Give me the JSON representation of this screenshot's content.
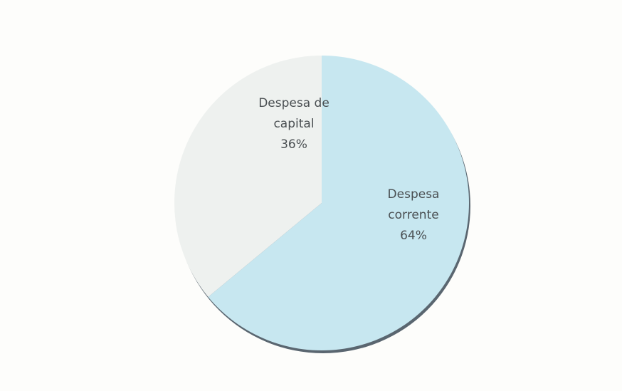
{
  "chart_data": {
    "type": "pie",
    "title": "",
    "slices": [
      {
        "label_lines": [
          "Despesa",
          "corrente",
          "64%"
        ],
        "value": 64,
        "color": "#c7e7f0"
      },
      {
        "label_lines": [
          "Despesa de",
          "capital",
          "36%"
        ],
        "value": 36,
        "color": "#eef1ef"
      }
    ],
    "start_angle_deg": 0,
    "direction": "clockwise",
    "legend": "none"
  },
  "colors": {
    "background": "#fdfdfb",
    "shadow": "#5a6670"
  }
}
